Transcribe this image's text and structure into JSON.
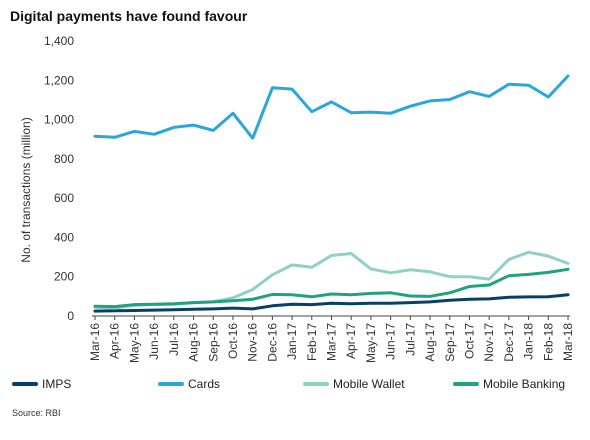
{
  "chart_data": {
    "type": "line",
    "title": "Digital payments have found favour",
    "ylabel": "No. of transactions (million)",
    "xlabel": "",
    "ylim": [
      0,
      1400
    ],
    "yticks": [
      0,
      200,
      400,
      600,
      800,
      1000,
      1200,
      1400
    ],
    "ytick_labels": [
      "0",
      "200",
      "400",
      "600",
      "800",
      "1,000",
      "1,200",
      "1,400"
    ],
    "grid": false,
    "legend_position": "bottom",
    "categories": [
      "Mar-16",
      "Apr-16",
      "May-16",
      "Jun-16",
      "Jul-16",
      "Aug-16",
      "Sep-16",
      "Oct-16",
      "Nov-16",
      "Dec-16",
      "Jan-17",
      "Feb-17",
      "Mar-17",
      "Apr-17",
      "May-17",
      "Jun-17",
      "Jul-17",
      "Aug-17",
      "Sep-17",
      "Oct-17",
      "Nov-17",
      "Dec-17",
      "Jan-18",
      "Feb-18",
      "Mar-18"
    ],
    "series": [
      {
        "name": "IMPS",
        "color": "#0b3d6b",
        "values": [
          25,
          27,
          28,
          30,
          32,
          34,
          36,
          40,
          36,
          52,
          60,
          58,
          65,
          62,
          65,
          65,
          68,
          72,
          80,
          85,
          87,
          95,
          97,
          98,
          108
        ]
      },
      {
        "name": "Cards",
        "color": "#2aa6df",
        "values": [
          915,
          910,
          940,
          925,
          960,
          972,
          945,
          1032,
          905,
          1162,
          1155,
          1040,
          1090,
          1035,
          1038,
          1032,
          1068,
          1095,
          1102,
          1142,
          1118,
          1180,
          1175,
          1115,
          1222
        ]
      },
      {
        "name": "Mobile Wallet",
        "color": "#8fd0c7",
        "values": [
          45,
          40,
          55,
          58,
          60,
          68,
          72,
          92,
          135,
          210,
          260,
          248,
          308,
          318,
          240,
          220,
          235,
          225,
          200,
          200,
          188,
          288,
          325,
          305,
          268
        ]
      },
      {
        "name": "Mobile Banking",
        "color": "#1fa37f",
        "values": [
          50,
          48,
          58,
          60,
          62,
          68,
          72,
          78,
          85,
          110,
          108,
          98,
          112,
          108,
          115,
          118,
          102,
          100,
          118,
          150,
          158,
          205,
          212,
          222,
          238
        ]
      }
    ]
  },
  "source": "Source: RBI"
}
